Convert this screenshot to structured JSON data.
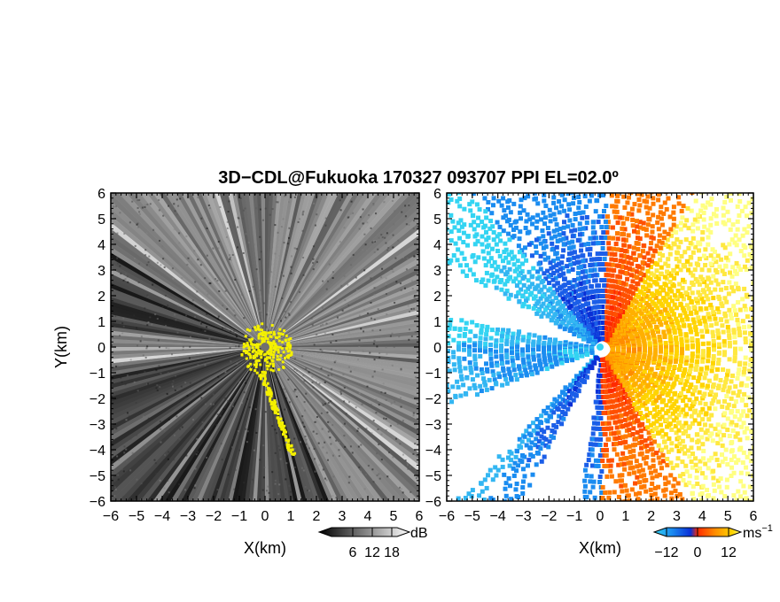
{
  "title": "3D−CDL@Fukuoka 170327 093707 PPI EL=02.0º",
  "chart_data": [
    {
      "type": "heatmap",
      "panel": "left",
      "xlabel": "X(km)",
      "ylabel": "Y(km)",
      "xlim": [
        -6,
        6
      ],
      "ylim": [
        -6,
        6
      ],
      "xticks": [
        "−6",
        "−5",
        "−4",
        "−3",
        "−2",
        "−1",
        "0",
        "1",
        "2",
        "3",
        "4",
        "5",
        "6"
      ],
      "yticks": [
        "6",
        "5",
        "4",
        "3",
        "2",
        "1",
        "0",
        "−1",
        "−2",
        "−3",
        "−4",
        "−5",
        "−6"
      ],
      "radar_location": [
        0,
        0
      ],
      "colorbar": {
        "unit": "dB",
        "ticks": [
          "6",
          "12",
          "18"
        ],
        "range": [
          0,
          21
        ],
        "colors": [
          "#000000",
          "#ffffff"
        ]
      }
    },
    {
      "type": "heatmap",
      "panel": "right",
      "xlabel": "X(km)",
      "xlim": [
        -6,
        6
      ],
      "ylim": [
        -6,
        6
      ],
      "xticks": [
        "−6",
        "−5",
        "−4",
        "−3",
        "−2",
        "−1",
        "0",
        "1",
        "2",
        "3",
        "4",
        "5",
        "6"
      ],
      "yticks": [
        "6",
        "5",
        "4",
        "3",
        "2",
        "1",
        "0",
        "−1",
        "−2",
        "−3",
        "−4",
        "−5",
        "−6"
      ],
      "colorbar": {
        "unit": "ms",
        "unit_exp": "−1",
        "ticks": [
          "−12",
          "0",
          "12"
        ],
        "range": [
          -20,
          20
        ],
        "colors": [
          "#0a2fd6",
          "#1b8cf0",
          "#33d4f2",
          "#ff2a00",
          "#ff8c00",
          "#ffd400",
          "#ffff80"
        ]
      }
    }
  ]
}
